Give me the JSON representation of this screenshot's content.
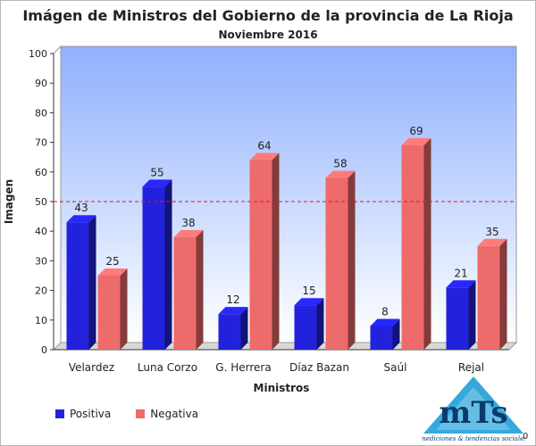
{
  "chart_data": {
    "type": "bar",
    "title": "Imágen de Ministros del Gobierno de la provincia de La Rioja",
    "subtitle": "Noviembre 2016",
    "xlabel": "Ministros",
    "ylabel": "Imagen",
    "ylim": [
      0,
      100
    ],
    "yticks": [
      0,
      10,
      20,
      30,
      40,
      50,
      60,
      70,
      80,
      90,
      100
    ],
    "reference_line": 50,
    "categories": [
      "Velardez",
      "Luna Corzo",
      "G. Herrera",
      "Díaz Bazan",
      "Saúl",
      "Rejal"
    ],
    "series": [
      {
        "name": "Positiva",
        "color": "#2222dd",
        "values": [
          43,
          55,
          12,
          15,
          8,
          21
        ]
      },
      {
        "name": "Negativa",
        "color": "#ee6b6b",
        "values": [
          25,
          38,
          64,
          58,
          69,
          35
        ]
      }
    ],
    "legend_position": "bottom-left",
    "grid": false
  },
  "logo": {
    "text": "mTs",
    "caption": "mediciones & tendencias sociales",
    "color": "#1f9fd8"
  },
  "corner_text": "0"
}
